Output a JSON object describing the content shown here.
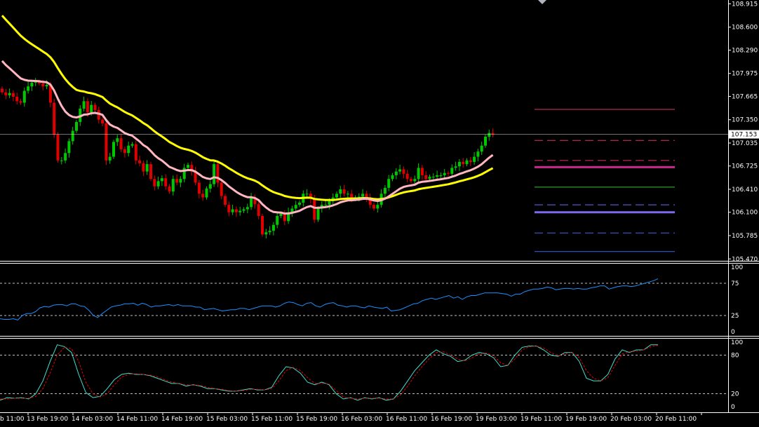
{
  "chart_data": [
    {
      "type": "candlestick",
      "panel": "price",
      "ylim": [
        105.4,
        109.0
      ],
      "price_ticks": [
        "108.915",
        "108.600",
        "108.290",
        "107.975",
        "107.665",
        "107.350",
        "107.035",
        "106.725",
        "106.410",
        "106.100",
        "105.785",
        "105.470"
      ],
      "current_price": 107.153,
      "current_price_label": "107.153",
      "colors": {
        "bull": "#00c800",
        "bear": "#e00000",
        "ma_slow": "#ffff00",
        "ma_fast": "#ffb6c1",
        "grid_line": "#ffffff"
      },
      "closes": [
        107.72,
        107.68,
        107.71,
        107.66,
        107.6,
        107.58,
        107.74,
        107.8,
        107.85,
        107.86,
        107.84,
        107.8,
        107.82,
        107.58,
        107.15,
        106.8,
        106.8,
        106.9,
        107.06,
        107.2,
        107.32,
        107.5,
        107.6,
        107.45,
        107.55,
        107.48,
        107.35,
        107.3,
        106.8,
        106.85,
        107.05,
        107.1,
        106.95,
        106.9,
        107.0,
        107.02,
        106.8,
        106.76,
        106.65,
        106.75,
        106.55,
        106.45,
        106.52,
        106.56,
        106.45,
        106.38,
        106.55,
        106.5,
        106.55,
        106.7,
        106.74,
        106.65,
        106.5,
        106.35,
        106.3,
        106.42,
        106.48,
        106.75,
        106.5,
        106.32,
        106.2,
        106.1,
        106.14,
        106.1,
        106.12,
        106.14,
        106.17,
        106.3,
        106.21,
        106.05,
        105.8,
        105.83,
        105.85,
        105.93,
        106.05,
        106.08,
        105.98,
        106.1,
        106.15,
        106.2,
        106.23,
        106.35,
        106.35,
        106.28,
        106.0,
        106.15,
        106.2,
        106.2,
        106.25,
        106.3,
        106.35,
        106.41,
        106.35,
        106.35,
        106.28,
        106.3,
        106.31,
        106.35,
        106.3,
        106.2,
        106.15,
        106.2,
        106.35,
        106.43,
        106.55,
        106.6,
        106.65,
        106.68,
        106.62,
        106.55,
        106.52,
        106.55,
        106.7,
        106.6,
        106.55,
        106.58,
        106.58,
        106.6,
        106.6,
        106.63,
        106.62,
        106.7,
        106.72,
        106.78,
        106.75,
        106.8,
        106.78,
        106.85,
        106.92,
        107.0,
        107.12,
        107.17,
        107.15
      ]
    },
    {
      "type": "line",
      "panel": "oscillator-1",
      "ylim": [
        0,
        100
      ],
      "levels": [
        75,
        25
      ],
      "ticks": [
        "100",
        "75",
        "25",
        "0"
      ],
      "color": "#1e90ff",
      "values": [
        20,
        19,
        19,
        20,
        18,
        25,
        28,
        28,
        31,
        37,
        39,
        38,
        41,
        42,
        42,
        40,
        43,
        43,
        40,
        39,
        33,
        25,
        22,
        28,
        33,
        38,
        40,
        41,
        43,
        43,
        44,
        41,
        44,
        42,
        38,
        40,
        40,
        41,
        42,
        40,
        42,
        40,
        40,
        40,
        38,
        38,
        34,
        35,
        36,
        34,
        32,
        33,
        34,
        34,
        36,
        36,
        34,
        36,
        38,
        40,
        40,
        40,
        38,
        40,
        44,
        46,
        45,
        42,
        40,
        44,
        45,
        40,
        38,
        42,
        44,
        45,
        41,
        40,
        38,
        40,
        40,
        38,
        37,
        40,
        38,
        37,
        36,
        38,
        32,
        33,
        34,
        37,
        40,
        43,
        44,
        48,
        50,
        52,
        50,
        52,
        54,
        56,
        52,
        54,
        50,
        54,
        56,
        56,
        58,
        60,
        60,
        60,
        60,
        59,
        58,
        55,
        58,
        58,
        62,
        64,
        66,
        66,
        67,
        69,
        68,
        65,
        66,
        67,
        67,
        66,
        67,
        66,
        66,
        68,
        69,
        71,
        71,
        66,
        68,
        70,
        71,
        71,
        70,
        71,
        73,
        75,
        77,
        79,
        82
      ]
    },
    {
      "type": "line",
      "panel": "oscillator-2",
      "ylim": [
        0,
        100
      ],
      "levels": [
        80,
        20
      ],
      "ticks": [
        "100",
        "80",
        "20",
        "0"
      ],
      "x_ticks": [
        "b 11:00",
        "13 Feb 19:00",
        "14 Feb 03:00",
        "14 Feb 11:00",
        "14 Feb 19:00",
        "15 Feb 03:00",
        "15 Feb 11:00",
        "15 Feb 19:00",
        "16 Feb 03:00",
        "16 Feb 11:00",
        "16 Feb 19:00",
        "19 Feb 03:00",
        "19 Feb 11:00",
        "19 Feb 19:00",
        "20 Feb 03:00",
        "20 Feb 11:00"
      ],
      "series": [
        {
          "color": "#40e0d0",
          "values": [
            10,
            14,
            13,
            14,
            12,
            20,
            40,
            70,
            96,
            93,
            84,
            50,
            22,
            14,
            16,
            28,
            42,
            50,
            52,
            50,
            50,
            48,
            44,
            40,
            36,
            36,
            32,
            34,
            32,
            28,
            28,
            26,
            24,
            24,
            26,
            28,
            26,
            26,
            30,
            48,
            62,
            60,
            52,
            38,
            34,
            38,
            34,
            20,
            12,
            14,
            10,
            14,
            12,
            14,
            10,
            12,
            24,
            40,
            56,
            68,
            80,
            88,
            82,
            78,
            70,
            72,
            80,
            84,
            82,
            76,
            62,
            64,
            80,
            92,
            94,
            94,
            88,
            80,
            78,
            84,
            84,
            70,
            44,
            40,
            40,
            50,
            74,
            88,
            84,
            88,
            88,
            96,
            96
          ]
        },
        {
          "color": "#e00000",
          "values": [
            12,
            12,
            13,
            13,
            13,
            16,
            28,
            52,
            80,
            92,
            90,
            70,
            38,
            20,
            15,
            20,
            34,
            46,
            50,
            51,
            50,
            49,
            46,
            42,
            38,
            36,
            34,
            33,
            33,
            30,
            28,
            27,
            25,
            24,
            25,
            27,
            27,
            26,
            28,
            40,
            56,
            61,
            56,
            45,
            36,
            36,
            35,
            25,
            15,
            13,
            12,
            13,
            13,
            13,
            12,
            12,
            18,
            32,
            48,
            62,
            74,
            84,
            85,
            80,
            74,
            71,
            76,
            82,
            83,
            79,
            68,
            64,
            74,
            88,
            93,
            94,
            91,
            84,
            79,
            82,
            84,
            76,
            56,
            44,
            40,
            45,
            64,
            82,
            85,
            86,
            88,
            93,
            95
          ]
        }
      ]
    }
  ],
  "levels_panel": [
    {
      "price": 107.49,
      "color": "#e0306a",
      "style": "solid",
      "width": 1
    },
    {
      "price": 107.07,
      "color": "#e0306a",
      "style": "dashed",
      "width": 1
    },
    {
      "price": 106.8,
      "color": "#e0306a",
      "style": "dashed",
      "width": 1
    },
    {
      "price": 106.71,
      "color": "#c8288c",
      "style": "solid",
      "width": 3
    },
    {
      "price": 106.44,
      "color": "#32c832",
      "style": "solid",
      "width": 1
    },
    {
      "price": 106.2,
      "color": "#6a6aff",
      "style": "dashed",
      "width": 1
    },
    {
      "price": 106.1,
      "color": "#7b68ee",
      "style": "solid",
      "width": 3
    },
    {
      "price": 105.82,
      "color": "#4169e1",
      "style": "dashed",
      "width": 1
    },
    {
      "price": 105.57,
      "color": "#4169e1",
      "style": "solid",
      "width": 1
    }
  ]
}
